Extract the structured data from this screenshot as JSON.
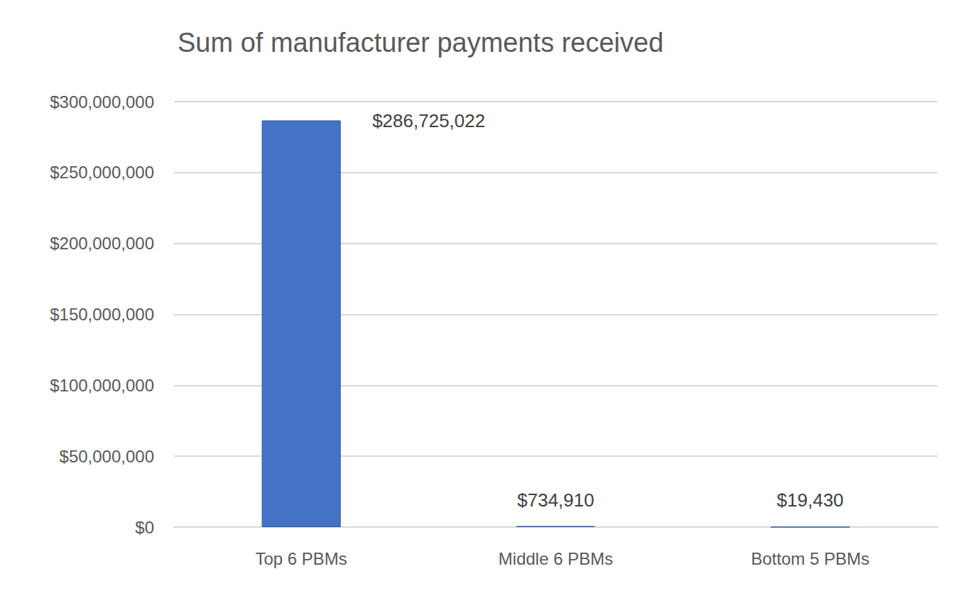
{
  "chart_data": {
    "type": "bar",
    "title": "Sum of manufacturer payments received",
    "categories": [
      "Top 6 PBMs",
      "Middle 6 PBMs",
      "Bottom 5 PBMs"
    ],
    "values": [
      286725022,
      734910,
      19430
    ],
    "value_labels": [
      "$286,725,022",
      "$734,910",
      "$19,430"
    ],
    "color": "#4472c4",
    "ylim": [
      0,
      300000000
    ],
    "yticks": [
      {
        "value": 0,
        "label": "$0"
      },
      {
        "value": 50000000,
        "label": "$50,000,000"
      },
      {
        "value": 100000000,
        "label": "$100,000,000"
      },
      {
        "value": 150000000,
        "label": "$150,000,000"
      },
      {
        "value": 200000000,
        "label": "$200,000,000"
      },
      {
        "value": 250000000,
        "label": "$250,000,000"
      },
      {
        "value": 300000000,
        "label": "$300,000,000"
      }
    ],
    "grid": true,
    "data_labels": true
  }
}
